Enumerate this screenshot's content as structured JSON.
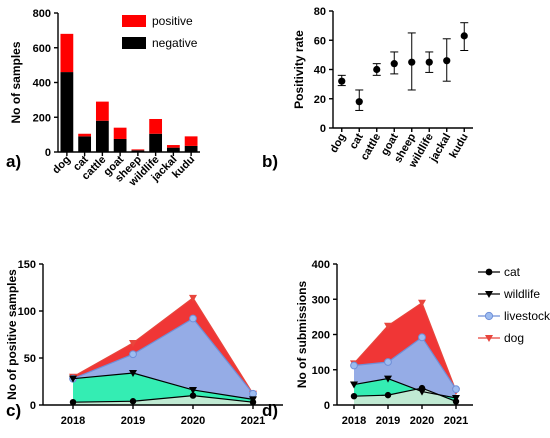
{
  "chart_data": [
    {
      "panel": "a)",
      "type": "bar",
      "ylabel": "No of samples",
      "ylim": [
        0,
        800
      ],
      "yticks": [
        0,
        200,
        400,
        600,
        800
      ],
      "categories": [
        "dog",
        "cat",
        "cattle",
        "goat",
        "sheep",
        "wildlife",
        "jackal",
        "kudu"
      ],
      "stacked": true,
      "series": [
        {
          "name": "negative",
          "values": [
            460,
            90,
            180,
            75,
            10,
            105,
            25,
            35
          ],
          "color": "#000000"
        },
        {
          "name": "positive",
          "values": [
            220,
            15,
            110,
            65,
            5,
            85,
            15,
            55
          ],
          "color": "#ff0000"
        }
      ],
      "legend": "top-right",
      "legend_order": [
        "positive",
        "negative"
      ]
    },
    {
      "panel": "b)",
      "type": "scatter",
      "ylabel": "Positivity rate",
      "ylim": [
        0,
        80
      ],
      "yticks": [
        0,
        20,
        40,
        60,
        80
      ],
      "categories": [
        "dog",
        "cat",
        "cattle",
        "goat",
        "sheep",
        "wildlife",
        "jackal",
        "kudu"
      ],
      "values": [
        32,
        18,
        40,
        44,
        45,
        45,
        46,
        63
      ],
      "error_low": [
        29,
        12,
        36,
        37,
        26,
        38,
        32,
        53
      ],
      "error_high": [
        36,
        26,
        44,
        52,
        65,
        52,
        61,
        72
      ]
    },
    {
      "panel": "c)",
      "type": "area",
      "ylabel": "No of positive samples",
      "ylim": [
        0,
        150
      ],
      "yticks": [
        0,
        50,
        100,
        150
      ],
      "x": [
        "2018",
        "2019",
        "2020",
        "2021"
      ],
      "series": [
        {
          "name": "dog",
          "values": [
            30,
            66,
            114,
            12
          ],
          "color": "#e8453c",
          "fill": "#ef2b2b"
        },
        {
          "name": "livestock",
          "values": [
            28,
            54,
            92,
            12
          ],
          "color": "#6f8fd8",
          "fill": "#8fb3f0"
        },
        {
          "name": "wildlife",
          "values": [
            28,
            34,
            16,
            6
          ],
          "color": "#000000",
          "fill": "#2ef0b0"
        },
        {
          "name": "cat",
          "values": [
            3,
            4,
            10,
            3
          ],
          "color": "#000000",
          "fill": "#c8ead5"
        }
      ]
    },
    {
      "panel": "d)",
      "type": "area",
      "ylabel": "No of submissions",
      "ylim": [
        0,
        400
      ],
      "yticks": [
        0,
        100,
        200,
        300,
        400
      ],
      "x": [
        "2018",
        "2019",
        "2020",
        "2021"
      ],
      "series": [
        {
          "name": "dog",
          "values": [
            118,
            225,
            290,
            40
          ],
          "color": "#e8453c",
          "fill": "#ef2b2b"
        },
        {
          "name": "livestock",
          "values": [
            112,
            122,
            192,
            45
          ],
          "color": "#6f8fd8",
          "fill": "#8fb3f0"
        },
        {
          "name": "wildlife",
          "values": [
            58,
            75,
            38,
            20
          ],
          "color": "#000000",
          "fill": "#2ef0b0"
        },
        {
          "name": "cat",
          "values": [
            25,
            28,
            48,
            10
          ],
          "color": "#000000",
          "fill": "#c8ead5"
        }
      ],
      "legend": "right",
      "legend_order": [
        "cat",
        "wildlife",
        "livestock",
        "dog"
      ]
    }
  ]
}
